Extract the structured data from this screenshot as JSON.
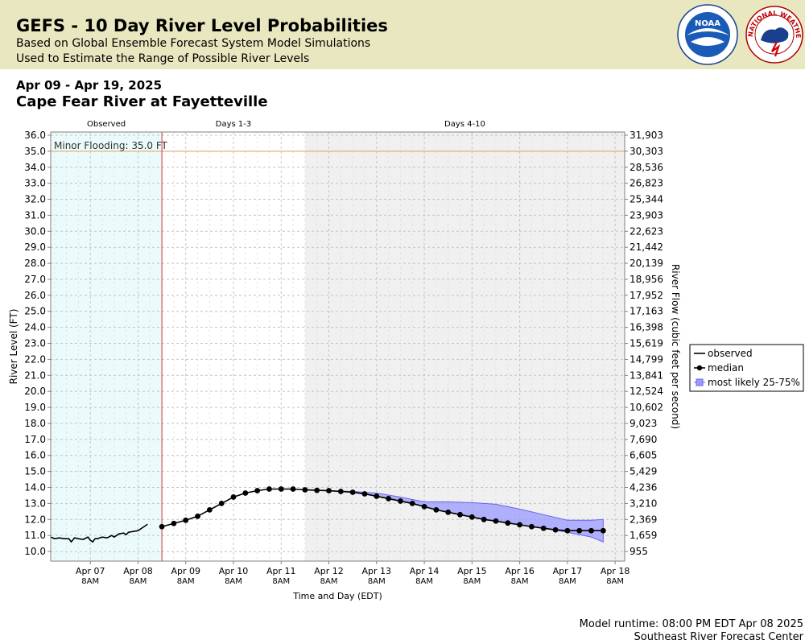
{
  "header": {
    "title": "GEFS - 10 Day River Level Probabilities",
    "subtitle1": "Based on Global Ensemble Forecast System Model Simulations",
    "subtitle2": "Used to Estimate the Range of Possible River Levels"
  },
  "date_range": "Apr 09 - Apr 19, 2025",
  "station": "Cape Fear River at Fayetteville",
  "footer": {
    "runtime": "Model runtime: 08:00 PM EDT Apr 08 2025",
    "center": "Southeast River Forecast Center"
  },
  "logos": {
    "noaa_text": "NOAA",
    "nws_text": "NATIONAL WEATHER SERVICE"
  },
  "chart_data": {
    "type": "line",
    "xlabel": "Time and Day (EDT)",
    "ylabel": "River Level (FT)",
    "y2label": "River Flow (cubic feet per second)",
    "ylim": [
      9.4,
      36.2
    ],
    "xlim_days": [
      -1.83,
      10.2
    ],
    "x_origin_label": "Apr 08 8AM",
    "x_ticks": [
      {
        "day": "Apr 07",
        "hour": "8AM",
        "d": -1
      },
      {
        "day": "Apr 08",
        "hour": "8AM",
        "d": 0
      },
      {
        "day": "Apr 09",
        "hour": "8AM",
        "d": 1
      },
      {
        "day": "Apr 10",
        "hour": "8AM",
        "d": 2
      },
      {
        "day": "Apr 11",
        "hour": "8AM",
        "d": 3
      },
      {
        "day": "Apr 12",
        "hour": "8AM",
        "d": 4
      },
      {
        "day": "Apr 13",
        "hour": "8AM",
        "d": 5
      },
      {
        "day": "Apr 14",
        "hour": "8AM",
        "d": 6
      },
      {
        "day": "Apr 15",
        "hour": "8AM",
        "d": 7
      },
      {
        "day": "Apr 16",
        "hour": "8AM",
        "d": 8
      },
      {
        "day": "Apr 17",
        "hour": "8AM",
        "d": 9
      },
      {
        "day": "Apr 18",
        "hour": "8AM",
        "d": 10
      }
    ],
    "y_ticks": [
      10.0,
      11.0,
      12.0,
      13.0,
      14.0,
      15.0,
      16.0,
      17.0,
      18.0,
      19.0,
      20.0,
      21.0,
      22.0,
      23.0,
      24.0,
      25.0,
      26.0,
      27.0,
      28.0,
      29.0,
      30.0,
      31.0,
      32.0,
      33.0,
      34.0,
      35.0,
      36.0
    ],
    "flow_ticks": [
      "955",
      "1,659",
      "2,369",
      "3,210",
      "4,236",
      "5,429",
      "6,605",
      "7,690",
      "9,023",
      "10,602",
      "12,524",
      "13,841",
      "14,799",
      "15,619",
      "16,398",
      "17,163",
      "17,952",
      "18,956",
      "20,139",
      "21,442",
      "22,623",
      "23,903",
      "25,344",
      "26,823",
      "28,536",
      "30,303",
      "31,903"
    ],
    "regions": [
      {
        "label": "Observed",
        "from": -1.83,
        "to": 0.5,
        "color": "#ebfbfb"
      },
      {
        "label": "Days 1-3",
        "from": 0.5,
        "to": 3.5,
        "color": "#ffffff"
      },
      {
        "label": "Days 4-10",
        "from": 3.5,
        "to": 10.2,
        "color": "#f0f0f0"
      }
    ],
    "forecast_start": 0.5,
    "flood_level": {
      "value": 35.0,
      "label": "Minor Flooding: 35.0 FT",
      "color": "#e8a060"
    },
    "legend": {
      "position": "right",
      "items": [
        "observed",
        "median",
        "most likely 25-75%"
      ]
    },
    "observed": {
      "name": "observed",
      "x": [
        -1.83,
        -1.75,
        -1.65,
        -1.55,
        -1.45,
        -1.4,
        -1.33,
        -1.25,
        -1.15,
        -1.05,
        -1.0,
        -0.95,
        -0.9,
        -0.85,
        -0.75,
        -0.65,
        -0.55,
        -0.5,
        -0.4,
        -0.3,
        -0.25,
        -0.2,
        -0.1,
        0.0,
        0.1,
        0.2
      ],
      "y": [
        10.9,
        10.8,
        10.85,
        10.8,
        10.8,
        10.6,
        10.85,
        10.8,
        10.75,
        10.9,
        10.7,
        10.6,
        10.8,
        10.8,
        10.9,
        10.85,
        11.0,
        10.9,
        11.1,
        11.15,
        11.05,
        11.2,
        11.25,
        11.3,
        11.5,
        11.7
      ]
    },
    "median": {
      "name": "median",
      "x": [
        0.5,
        0.75,
        1.0,
        1.25,
        1.5,
        1.75,
        2.0,
        2.25,
        2.5,
        2.75,
        3.0,
        3.25,
        3.5,
        3.75,
        4.0,
        4.25,
        4.5,
        4.75,
        5.0,
        5.25,
        5.5,
        5.75,
        6.0,
        6.25,
        6.5,
        6.75,
        7.0,
        7.25,
        7.5,
        7.75,
        8.0,
        8.25,
        8.5,
        8.75,
        9.0,
        9.25,
        9.5,
        9.75
      ],
      "y": [
        11.55,
        11.75,
        11.95,
        12.2,
        12.6,
        13.0,
        13.4,
        13.65,
        13.8,
        13.9,
        13.9,
        13.9,
        13.85,
        13.82,
        13.8,
        13.75,
        13.7,
        13.6,
        13.45,
        13.3,
        13.15,
        13.0,
        12.8,
        12.6,
        12.45,
        12.3,
        12.15,
        12.0,
        11.9,
        11.78,
        11.67,
        11.55,
        11.45,
        11.35,
        11.3,
        11.3,
        11.3,
        11.3
      ]
    },
    "band": {
      "name": "most likely 25-75%",
      "color": "#9999ff",
      "x": [
        3.5,
        4.5,
        5.0,
        5.5,
        6.0,
        6.5,
        7.0,
        7.5,
        8.0,
        8.5,
        9.0,
        9.5,
        9.75
      ],
      "lower": [
        13.85,
        13.7,
        13.45,
        13.15,
        12.8,
        12.45,
        12.15,
        11.9,
        11.67,
        11.45,
        11.2,
        10.9,
        10.6
      ],
      "upper": [
        13.85,
        13.75,
        13.65,
        13.4,
        13.1,
        13.1,
        13.05,
        12.95,
        12.65,
        12.3,
        11.95,
        11.95,
        12.0
      ]
    }
  }
}
